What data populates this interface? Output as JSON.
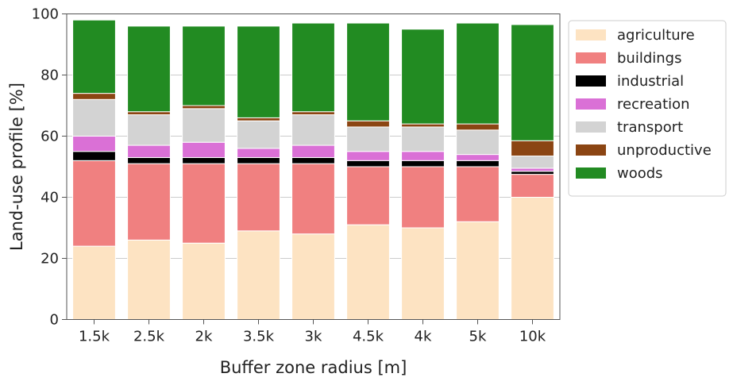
{
  "chart_data": {
    "type": "bar",
    "stacked": true,
    "title": "",
    "xlabel": "Buffer zone radius [m]",
    "ylabel": "Land-use profile [%]",
    "ylim": [
      0,
      100
    ],
    "yticks": [
      0,
      20,
      40,
      60,
      80,
      100
    ],
    "grid": true,
    "legend_position": "outside right, top",
    "categories": [
      "1.5k",
      "2.5k",
      "2k",
      "3.5k",
      "3k",
      "4.5k",
      "4k",
      "5k",
      "10k"
    ],
    "series": [
      {
        "name": "agriculture",
        "color": "#fde3c2",
        "values": [
          24,
          26,
          25,
          29,
          28,
          31,
          30,
          32,
          40
        ]
      },
      {
        "name": "buildings",
        "color": "#f08080",
        "values": [
          28,
          25,
          26,
          22,
          23,
          19,
          20,
          18,
          7.5
        ]
      },
      {
        "name": "industrial",
        "color": "#000000",
        "values": [
          3,
          2,
          2,
          2,
          2,
          2,
          2,
          2,
          1
        ]
      },
      {
        "name": "recreation",
        "color": "#da70d6",
        "values": [
          5,
          4,
          5,
          3,
          4,
          3,
          3,
          2,
          1
        ]
      },
      {
        "name": "transport",
        "color": "#d3d3d3",
        "values": [
          12,
          10,
          11,
          9,
          10,
          8,
          8,
          8,
          4
        ]
      },
      {
        "name": "unproductive",
        "color": "#8b4513",
        "values": [
          2,
          1,
          1,
          1,
          1,
          2,
          1,
          2,
          5
        ]
      },
      {
        "name": "woods",
        "color": "#228b22",
        "values": [
          24,
          28,
          26,
          30,
          29,
          32,
          31,
          33,
          38
        ]
      }
    ]
  }
}
